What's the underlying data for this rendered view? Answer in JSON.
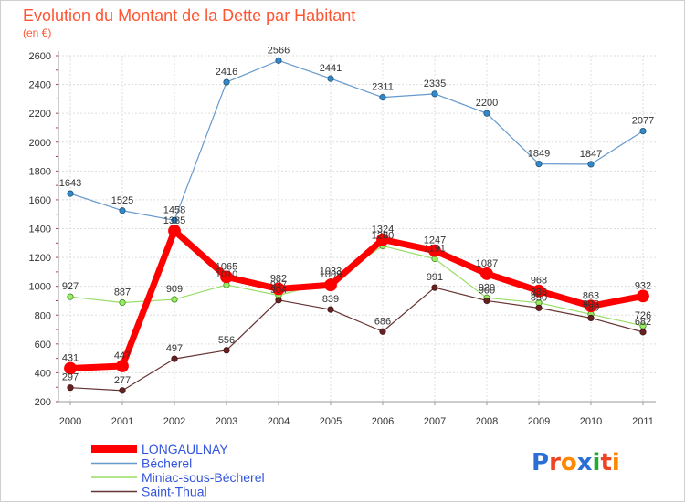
{
  "chart_data": {
    "type": "line",
    "title": "Evolution du Montant de la Dette par Habitant",
    "subtitle": "(en €)",
    "xlabel": "",
    "ylabel": "",
    "x": [
      "2000",
      "2001",
      "2002",
      "2003",
      "2004",
      "2005",
      "2006",
      "2007",
      "2008",
      "2009",
      "2010",
      "2011"
    ],
    "ylim": [
      200,
      2600
    ],
    "yticks": [
      200,
      400,
      600,
      800,
      1000,
      1200,
      1400,
      1600,
      1800,
      2000,
      2200,
      2400,
      2600
    ],
    "grid": true,
    "legend_position": "bottom-left",
    "series": [
      {
        "name": "LONGAULNAY",
        "color": "#ff0000",
        "values": [
          431,
          447,
          1385,
          1065,
          982,
          1009,
          1324,
          1247,
          1087,
          968,
          863,
          932
        ]
      },
      {
        "name": "Bécherel",
        "color": "#6699cc",
        "values": [
          1643,
          1525,
          1458,
          2416,
          2566,
          2441,
          2311,
          2335,
          2200,
          1849,
          1847,
          2077
        ]
      },
      {
        "name": "Miniac-sous-Bécherel",
        "color": "#99dd66",
        "values": [
          927,
          887,
          909,
          1010,
          937,
          1033,
          1280,
          1191,
          920,
          886,
          806,
          726
        ]
      },
      {
        "name": "Saint-Thual",
        "color": "#663333",
        "values": [
          297,
          277,
          497,
          556,
          904,
          839,
          686,
          991,
          900,
          850,
          780,
          682
        ]
      }
    ],
    "point_labels": {
      "LONGAULNAY": [
        "431",
        "447",
        "1385",
        "1065",
        "982",
        "1009",
        "1324",
        "1247",
        "1087",
        "968",
        "863",
        "932"
      ],
      "Bécherel": [
        "1643",
        "1525",
        "1458",
        "2416",
        "2566",
        "2441",
        "2311",
        "2335",
        "2200",
        "1849",
        "1847",
        "2077"
      ],
      "Miniac-sous-Bécherel": [
        "927",
        "887",
        "909",
        "1010",
        "937",
        "1033",
        "1280",
        "1191",
        "920",
        "886",
        "806",
        "726"
      ],
      "Saint-Thual": [
        "297",
        "277",
        "497",
        "556",
        "904",
        "839",
        "686",
        "991",
        "900",
        "850",
        "780",
        "682"
      ]
    }
  },
  "logo": {
    "text": "Proxiti"
  }
}
